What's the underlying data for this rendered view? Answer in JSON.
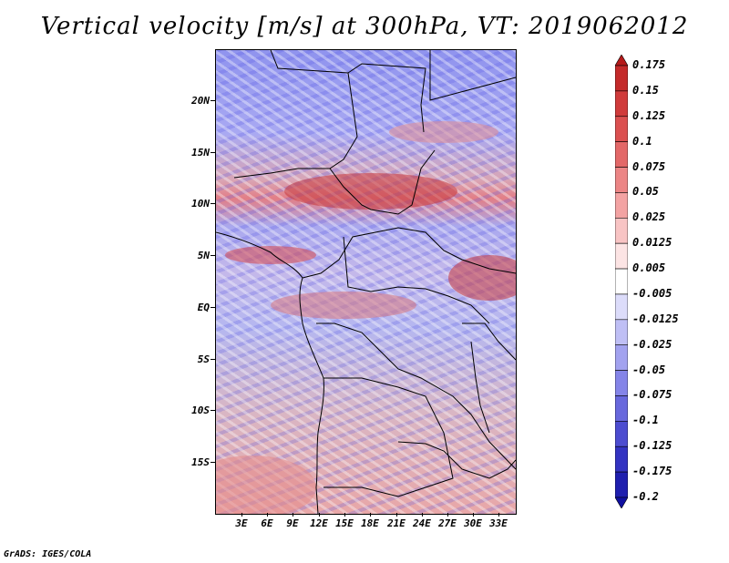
{
  "title": "Vertical velocity [m/s] at 300hPa, VT: 2019062012",
  "map": {
    "latitude_labels": [
      "20N",
      "15N",
      "10N",
      "5N",
      "EQ",
      "5S",
      "10S",
      "15S"
    ],
    "longitude_labels": [
      "3E",
      "6E",
      "9E",
      "12E",
      "15E",
      "18E",
      "21E",
      "24E",
      "27E",
      "30E",
      "33E"
    ]
  },
  "colorbar": {
    "labels": [
      "0.175",
      "0.15",
      "0.125",
      "0.1",
      "0.075",
      "0.05",
      "0.025",
      "0.0125",
      "0.005",
      "-0.005",
      "-0.0125",
      "-0.025",
      "-0.05",
      "-0.075",
      "-0.1",
      "-0.125",
      "-0.175",
      "-0.2"
    ],
    "colors": [
      "#b51a1a",
      "#c42a2a",
      "#d03b3b",
      "#db5050",
      "#e36868",
      "#ec8585",
      "#f3a3a3",
      "#f8c4c4",
      "#fce4e4",
      "#ffffff",
      "#dcdcfa",
      "#bfbff5",
      "#a2a2ef",
      "#8484e8",
      "#6868dd",
      "#4c4cd0",
      "#3333c2",
      "#1f1faf",
      "#1010a0"
    ]
  },
  "footer": "GrADS: IGES/COLA"
}
